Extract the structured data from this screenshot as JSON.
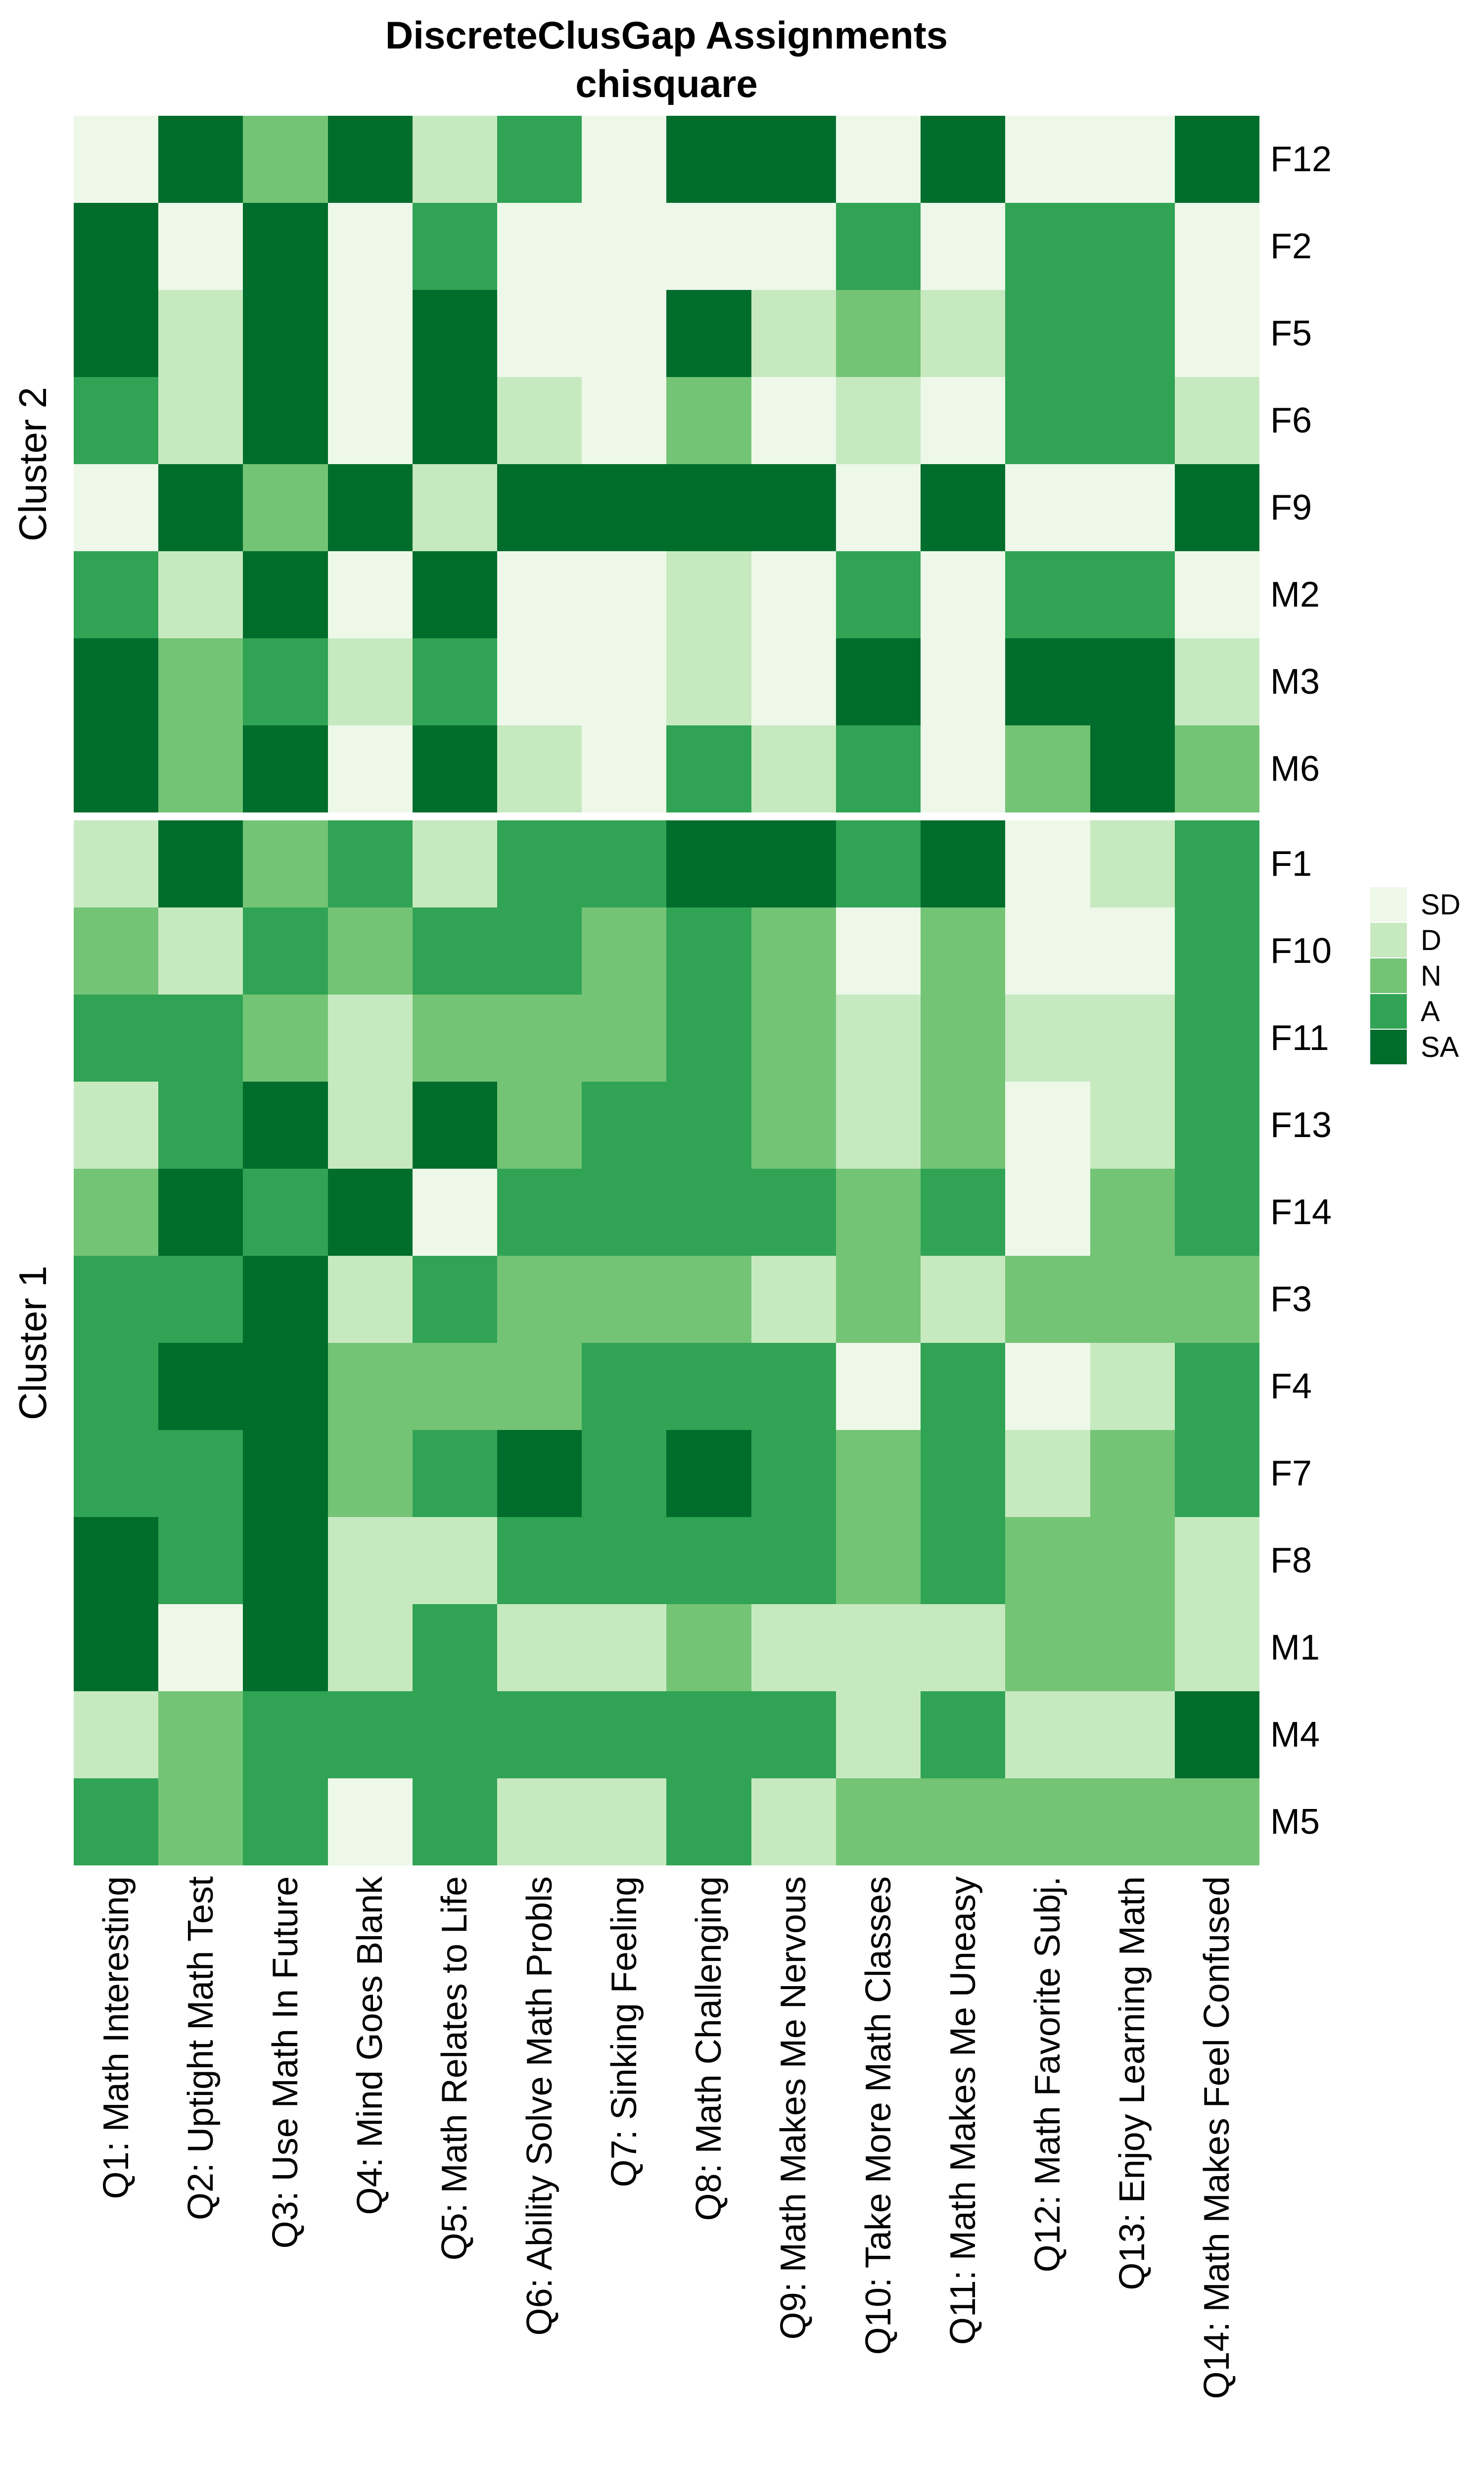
{
  "title": {
    "line1": "DiscreteClusGap Assignments",
    "line2": "chisquare"
  },
  "legend": {
    "entries": [
      {
        "label": "SD",
        "color": "#edf8e9"
      },
      {
        "label": "D",
        "color": "#c7e9c0"
      },
      {
        "label": "N",
        "color": "#74c476"
      },
      {
        "label": "A",
        "color": "#31a354"
      },
      {
        "label": "SA",
        "color": "#006d2c"
      }
    ]
  },
  "chart_data": {
    "type": "heatmap",
    "title": "DiscreteClusGap Assignments",
    "subtitle": "chisquare",
    "value_codes": [
      "SD",
      "D",
      "N",
      "A",
      "SA"
    ],
    "colors": {
      "SD": "#edf8e9",
      "D": "#c7e9c0",
      "N": "#74c476",
      "A": "#31a354",
      "SA": "#006d2c"
    },
    "legend_position": "right",
    "x_labels": [
      "Q1: Math Interesting",
      "Q2: Uptight Math Test",
      "Q3: Use Math In Future",
      "Q4: Mind Goes Blank",
      "Q5: Math Relates to Life",
      "Q6: Ability Solve Math Probls",
      "Q7: Sinking Feeling",
      "Q8: Math Challenging",
      "Q9: Math Makes Me Nervous",
      "Q10: Take More Math Classes",
      "Q11: Math Makes Me Uneasy",
      "Q12: Math Favorite Subj.",
      "Q13: Enjoy Learning Math",
      "Q14: Math Makes Feel Confused"
    ],
    "row_groups": [
      {
        "name": "Cluster 2",
        "rows": [
          "F12",
          "F2",
          "F5",
          "F6",
          "F9",
          "M2",
          "M3",
          "M6"
        ],
        "values": [
          [
            0,
            4,
            2,
            4,
            1,
            3,
            0,
            4,
            4,
            0,
            4,
            0,
            0,
            4
          ],
          [
            4,
            0,
            4,
            0,
            3,
            0,
            0,
            0,
            0,
            3,
            0,
            3,
            3,
            0
          ],
          [
            4,
            1,
            4,
            0,
            4,
            0,
            0,
            4,
            1,
            2,
            1,
            3,
            3,
            0
          ],
          [
            3,
            1,
            4,
            0,
            4,
            1,
            0,
            2,
            0,
            1,
            0,
            3,
            3,
            1
          ],
          [
            0,
            4,
            2,
            4,
            1,
            4,
            4,
            4,
            4,
            0,
            4,
            0,
            0,
            4
          ],
          [
            3,
            1,
            4,
            0,
            4,
            0,
            0,
            1,
            0,
            3,
            0,
            3,
            3,
            0
          ],
          [
            4,
            2,
            3,
            1,
            3,
            0,
            0,
            1,
            0,
            4,
            0,
            4,
            4,
            1
          ],
          [
            4,
            2,
            4,
            0,
            4,
            1,
            0,
            3,
            1,
            3,
            0,
            2,
            4,
            2
          ]
        ]
      },
      {
        "name": "Cluster 1",
        "rows": [
          "F1",
          "F10",
          "F11",
          "F13",
          "F14",
          "F3",
          "F4",
          "F7",
          "F8",
          "M1",
          "M4",
          "M5"
        ],
        "values": [
          [
            1,
            4,
            2,
            3,
            1,
            3,
            3,
            4,
            4,
            3,
            4,
            0,
            1,
            3
          ],
          [
            2,
            1,
            3,
            2,
            3,
            3,
            2,
            3,
            2,
            0,
            2,
            0,
            0,
            3
          ],
          [
            3,
            3,
            2,
            1,
            2,
            2,
            2,
            3,
            2,
            1,
            2,
            1,
            1,
            3
          ],
          [
            1,
            3,
            4,
            1,
            4,
            2,
            3,
            3,
            2,
            1,
            2,
            0,
            1,
            3
          ],
          [
            2,
            4,
            3,
            4,
            0,
            3,
            3,
            3,
            3,
            2,
            3,
            0,
            2,
            3
          ],
          [
            3,
            3,
            4,
            1,
            3,
            2,
            2,
            2,
            1,
            2,
            1,
            2,
            2,
            2
          ],
          [
            3,
            4,
            4,
            2,
            2,
            2,
            3,
            3,
            3,
            0,
            3,
            0,
            1,
            3
          ],
          [
            3,
            3,
            4,
            2,
            3,
            4,
            3,
            4,
            3,
            2,
            3,
            1,
            2,
            3
          ],
          [
            4,
            3,
            4,
            1,
            1,
            3,
            3,
            3,
            3,
            2,
            3,
            2,
            2,
            1
          ],
          [
            4,
            0,
            4,
            1,
            3,
            1,
            1,
            2,
            1,
            1,
            1,
            2,
            2,
            1
          ],
          [
            1,
            2,
            3,
            3,
            3,
            3,
            3,
            3,
            3,
            1,
            3,
            1,
            1,
            4
          ],
          [
            3,
            2,
            3,
            0,
            3,
            1,
            1,
            3,
            1,
            2,
            2,
            2,
            2,
            2
          ]
        ]
      }
    ]
  }
}
